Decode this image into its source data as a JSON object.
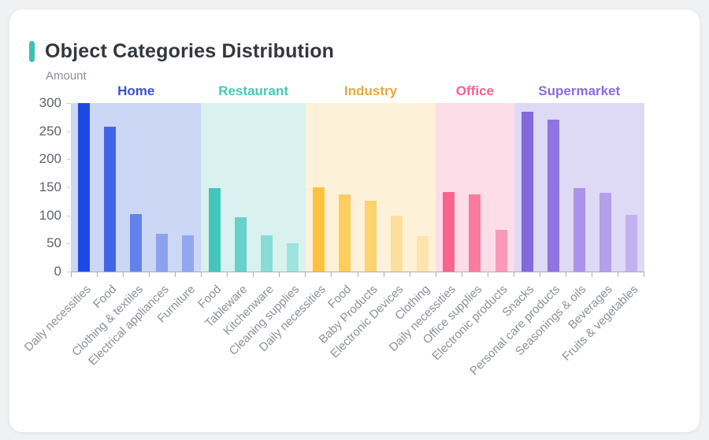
{
  "card": {
    "title": "Object Categories Distribution",
    "accent_color": "#3cc3b3"
  },
  "chart_data": {
    "type": "bar",
    "title": "Object Categories Distribution",
    "xlabel": "",
    "ylabel": "Amount",
    "ylim": [
      0,
      300
    ],
    "yticks": [
      0,
      50,
      100,
      150,
      200,
      250,
      300
    ],
    "grid": false,
    "legend_position": "none",
    "axis_color": "#a9adb5",
    "tick_label_color": "#8b919b",
    "groups": [
      {
        "name": "Home",
        "label_color": "#3b50dd",
        "band_color": "#ccd6f5",
        "categories": [
          "Daily necessities",
          "Food",
          "Clothing & textiles",
          "Electrical appliances",
          "Furniture"
        ],
        "values": [
          300,
          258,
          102,
          68,
          64
        ],
        "bar_colors": [
          "#1b4ae2",
          "#4066e6",
          "#6282ea",
          "#8da2ef",
          "#93a6f0"
        ]
      },
      {
        "name": "Restaurant",
        "label_color": "#47c9b8",
        "band_color": "#d9f2f0",
        "categories": [
          "Food",
          "Tableware",
          "Kitchenware",
          "Cleaning supplies"
        ],
        "values": [
          148,
          97,
          65,
          51
        ],
        "bar_colors": [
          "#45c6bc",
          "#65d1c9",
          "#87dcd6",
          "#9fe3de"
        ]
      },
      {
        "name": "Industry",
        "label_color": "#e9a63f",
        "band_color": "#fdf2d9",
        "categories": [
          "Daily necessities",
          "Food",
          "Baby Products",
          "Electronic Devices",
          "Clothing"
        ],
        "values": [
          150,
          138,
          126,
          99,
          63
        ],
        "bar_colors": [
          "#fec33e",
          "#fdcd5f",
          "#fdd36f",
          "#fede9a",
          "#fee3ac"
        ]
      },
      {
        "name": "Office",
        "label_color": "#f7608f",
        "band_color": "#fddde8",
        "categories": [
          "Daily necessities",
          "Office supplies",
          "Electronic products"
        ],
        "values": [
          142,
          138,
          74
        ],
        "bar_colors": [
          "#f9638f",
          "#fa7ba0",
          "#fb9ab8"
        ]
      },
      {
        "name": "Supermarket",
        "label_color": "#8b6ce2",
        "band_color": "#ded9f4",
        "categories": [
          "Snacks",
          "Personal care products",
          "Seasonings & oils",
          "Beverages",
          "Fruits & vegetables"
        ],
        "values": [
          284,
          270,
          148,
          140,
          101
        ],
        "bar_colors": [
          "#8468dd",
          "#9075e0",
          "#ab93e8",
          "#b49fea",
          "#c3b2ef"
        ]
      }
    ]
  }
}
